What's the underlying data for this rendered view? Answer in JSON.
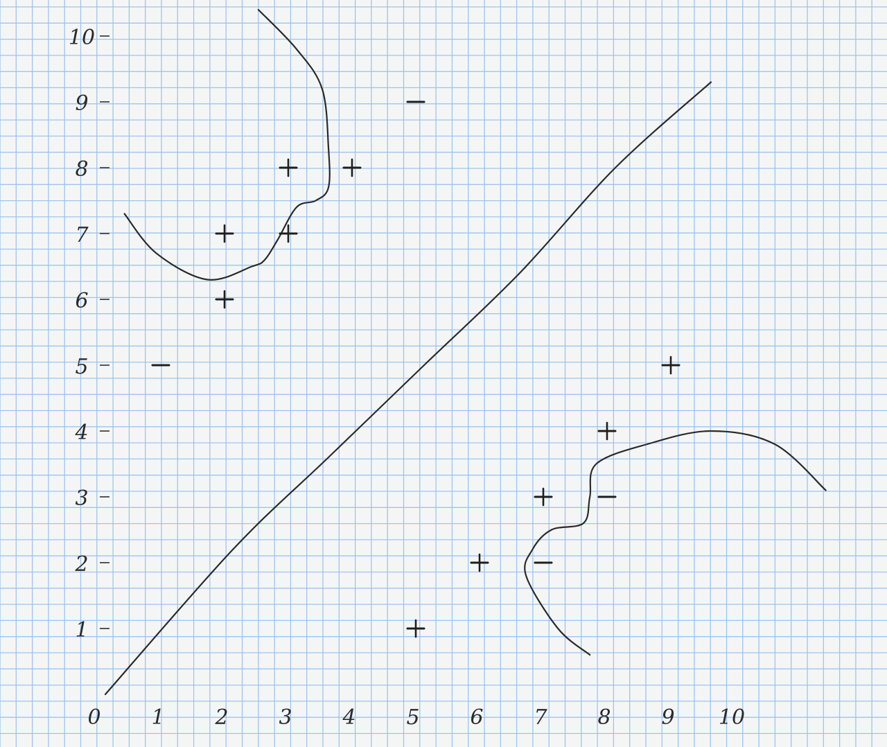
{
  "axes": {
    "x_ticks": [
      "0",
      "1",
      "2",
      "3",
      "4",
      "5",
      "6",
      "7",
      "8",
      "9",
      "10"
    ],
    "y_ticks": [
      "1",
      "2",
      "3",
      "4",
      "5",
      "6",
      "7",
      "8",
      "9",
      "10"
    ],
    "x_range": [
      0,
      10
    ],
    "y_range": [
      0,
      10
    ]
  },
  "points": [
    {
      "x": 1,
      "y": 5,
      "label": "−"
    },
    {
      "x": 2,
      "y": 6,
      "label": "+"
    },
    {
      "x": 2,
      "y": 7,
      "label": "+"
    },
    {
      "x": 3,
      "y": 7,
      "label": "+"
    },
    {
      "x": 3,
      "y": 8,
      "label": "+"
    },
    {
      "x": 4,
      "y": 8,
      "label": "+"
    },
    {
      "x": 5,
      "y": 9,
      "label": "−"
    },
    {
      "x": 5,
      "y": 1,
      "label": "+"
    },
    {
      "x": 6,
      "y": 2,
      "label": "+"
    },
    {
      "x": 7,
      "y": 2,
      "label": "−"
    },
    {
      "x": 7,
      "y": 3,
      "label": "+"
    },
    {
      "x": 8,
      "y": 3,
      "label": "−"
    },
    {
      "x": 8,
      "y": 4,
      "label": "+"
    },
    {
      "x": 9,
      "y": 5,
      "label": "+"
    }
  ],
  "curves": {
    "diagonal": [
      [
        0,
        0
      ],
      [
        2,
        2.2
      ],
      [
        3.5,
        3.6
      ],
      [
        5,
        5
      ],
      [
        6.5,
        6.4
      ],
      [
        8,
        8
      ],
      [
        9.5,
        9.3
      ]
    ],
    "upper_left": [
      [
        0.3,
        7.3
      ],
      [
        0.8,
        6.7
      ],
      [
        1.6,
        6.3
      ],
      [
        2.3,
        6.5
      ],
      [
        2.5,
        6.6
      ],
      [
        2.7,
        6.9
      ],
      [
        3,
        7.4
      ],
      [
        3.3,
        7.5
      ],
      [
        3.5,
        7.7
      ],
      [
        3.5,
        8.3
      ],
      [
        3.4,
        9.2
      ],
      [
        3,
        9.8
      ],
      [
        2.4,
        10.4
      ]
    ],
    "lower_right": [
      [
        7.6,
        0.6
      ],
      [
        7.1,
        1.0
      ],
      [
        6.6,
        1.8
      ],
      [
        6.7,
        2.2
      ],
      [
        7,
        2.5
      ],
      [
        7.5,
        2.6
      ],
      [
        7.6,
        3.0
      ],
      [
        7.7,
        3.5
      ],
      [
        8.5,
        3.8
      ],
      [
        9.5,
        4.0
      ],
      [
        10.5,
        3.8
      ],
      [
        11.3,
        3.1
      ]
    ]
  }
}
